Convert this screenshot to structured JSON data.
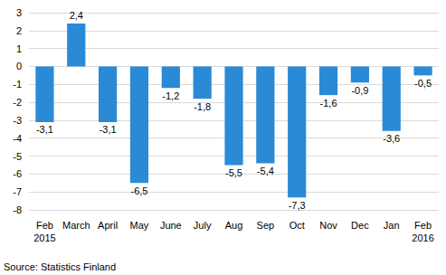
{
  "chart_data": {
    "type": "bar",
    "categories": [
      "Feb\n2015",
      "March",
      "April",
      "May",
      "June",
      "July",
      "Aug",
      "Sep",
      "Oct",
      "Nov",
      "Dec",
      "Jan",
      "Feb\n2016"
    ],
    "values": [
      -3.1,
      2.4,
      -3.1,
      -6.5,
      -1.2,
      -1.8,
      -5.5,
      -5.4,
      -7.3,
      -1.6,
      -0.9,
      -3.6,
      -0.5
    ],
    "value_labels": [
      "-3,1",
      "2,4",
      "-3,1",
      "-6,5",
      "-1,2",
      "-1,8",
      "-5,5",
      "-5,4",
      "-7,3",
      "-1,6",
      "-0,9",
      "-3,6",
      "-0,5"
    ],
    "color": "#2b8ad6",
    "ylim": [
      -8,
      3
    ],
    "yticks": [
      -8,
      -7,
      -6,
      -5,
      -4,
      -3,
      -2,
      -1,
      0,
      1,
      2,
      3
    ],
    "grid": true,
    "data_labels": true,
    "annotations": [
      "Source: Statistics Finland"
    ]
  }
}
